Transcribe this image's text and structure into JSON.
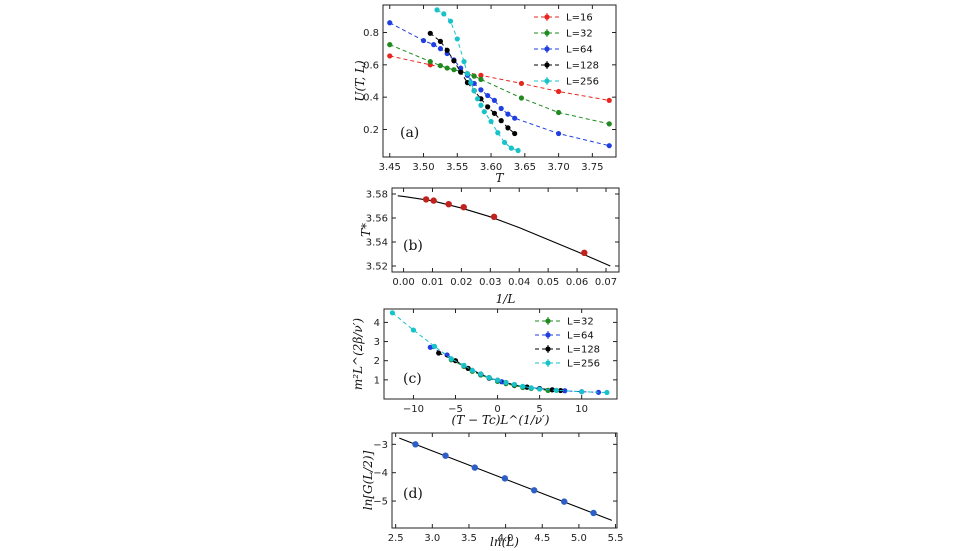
{
  "chart_data": [
    {
      "type": "line",
      "panel_label": "(a)",
      "xlabel": "T",
      "ylabel": "U(T, L)",
      "xlim": [
        3.44,
        3.785
      ],
      "ylim": [
        0.03,
        0.97
      ],
      "xticks": [
        3.45,
        3.5,
        3.55,
        3.6,
        3.65,
        3.7,
        3.75
      ],
      "xtick_labels": [
        "3.45",
        "3.50",
        "3.55",
        "3.60",
        "3.65",
        "3.70",
        "3.75"
      ],
      "yticks": [
        0.2,
        0.4,
        0.6,
        0.8
      ],
      "ytick_labels": [
        "0.2",
        "0.4",
        "0.6",
        "0.8"
      ],
      "legend_position": "top-right",
      "series": [
        {
          "name": "L=16",
          "color": "#e8251f",
          "x": [
            3.45,
            3.51,
            3.555,
            3.585,
            3.645,
            3.7,
            3.775
          ],
          "y": [
            0.655,
            0.6,
            0.56,
            0.535,
            0.485,
            0.435,
            0.38
          ]
        },
        {
          "name": "L=32",
          "color": "#1f8a1f",
          "x": [
            3.45,
            3.51,
            3.525,
            3.535,
            3.545,
            3.555,
            3.565,
            3.575,
            3.585,
            3.645,
            3.7,
            3.775
          ],
          "y": [
            0.725,
            0.62,
            0.595,
            0.58,
            0.57,
            0.56,
            0.545,
            0.53,
            0.51,
            0.395,
            0.305,
            0.235
          ]
        },
        {
          "name": "L=64",
          "color": "#1f3fe0",
          "x": [
            3.45,
            3.5,
            3.515,
            3.525,
            3.535,
            3.545,
            3.555,
            3.565,
            3.575,
            3.585,
            3.595,
            3.605,
            3.615,
            3.625,
            3.635,
            3.7,
            3.775
          ],
          "y": [
            0.86,
            0.75,
            0.725,
            0.7,
            0.67,
            0.63,
            0.58,
            0.535,
            0.485,
            0.445,
            0.41,
            0.38,
            0.33,
            0.295,
            0.27,
            0.175,
            0.1
          ]
        },
        {
          "name": "L=128",
          "color": "#000000",
          "x": [
            3.51,
            3.525,
            3.535,
            3.545,
            3.555,
            3.565,
            3.575,
            3.585,
            3.595,
            3.605,
            3.615,
            3.625,
            3.635
          ],
          "y": [
            0.795,
            0.745,
            0.69,
            0.625,
            0.555,
            0.49,
            0.44,
            0.39,
            0.34,
            0.3,
            0.255,
            0.21,
            0.175
          ]
        },
        {
          "name": "L=256",
          "color": "#17c3c9",
          "x": [
            3.52,
            3.53,
            3.54,
            3.55,
            3.56,
            3.565,
            3.57,
            3.575,
            3.58,
            3.585,
            3.59,
            3.6,
            3.61,
            3.62,
            3.63,
            3.64
          ],
          "y": [
            0.94,
            0.915,
            0.87,
            0.76,
            0.62,
            0.545,
            0.49,
            0.44,
            0.39,
            0.35,
            0.31,
            0.25,
            0.18,
            0.12,
            0.085,
            0.07
          ]
        }
      ]
    },
    {
      "type": "scatter",
      "panel_label": "(b)",
      "xlabel": "1/L",
      "ylabel": "T*",
      "xlim": [
        -0.004,
        0.0745
      ],
      "ylim": [
        3.515,
        3.585
      ],
      "xticks": [
        0.0,
        0.01,
        0.02,
        0.03,
        0.04,
        0.05,
        0.06,
        0.07
      ],
      "xtick_labels": [
        "0.00",
        "0.01",
        "0.02",
        "0.03",
        "0.04",
        "0.05",
        "0.06",
        "0.07"
      ],
      "yticks": [
        3.52,
        3.54,
        3.56,
        3.58
      ],
      "ytick_labels": [
        "3.52",
        "3.54",
        "3.56",
        "3.58"
      ],
      "points": {
        "color": "#c1221d",
        "x": [
          0.0078,
          0.0104,
          0.0156,
          0.0208,
          0.0313,
          0.0625
        ],
        "y": [
          3.5755,
          3.5745,
          3.5715,
          3.569,
          3.561,
          3.531
        ]
      },
      "fit": {
        "color": "#000000",
        "x": [
          -0.002,
          0.0,
          0.01,
          0.02,
          0.03,
          0.04,
          0.05,
          0.06,
          0.0715
        ],
        "y": [
          3.5785,
          3.578,
          3.5743,
          3.5683,
          3.561,
          3.552,
          3.542,
          3.532,
          3.52
        ]
      }
    },
    {
      "type": "line",
      "panel_label": "(c)",
      "xlabel": "(T − Tc)L^(1/ν′)",
      "ylabel": "m²L^(2β/ν′)",
      "xlim": [
        -13.5,
        14.2
      ],
      "ylim": [
        0.0,
        4.7
      ],
      "xticks": [
        -10,
        -5,
        0,
        5,
        10
      ],
      "xtick_labels": [
        "−10",
        "−5",
        "0",
        "5",
        "10"
      ],
      "yticks": [
        1,
        2,
        3,
        4
      ],
      "ytick_labels": [
        "1",
        "2",
        "3",
        "4"
      ],
      "legend_position": "top-right",
      "series": [
        {
          "name": "L=32",
          "color": "#1f8a1f",
          "x": [
            -5.5,
            -4.0,
            -3.0,
            -2.0,
            -1.0,
            0.0,
            1.0,
            2.0,
            3.0,
            4.0,
            6.0
          ],
          "y": [
            2.05,
            1.7,
            1.45,
            1.25,
            1.08,
            0.92,
            0.8,
            0.7,
            0.6,
            0.55,
            0.45
          ]
        },
        {
          "name": "L=64",
          "color": "#1f3fe0",
          "x": [
            -8.0,
            -6.0,
            -4.0,
            -2.0,
            -1.0,
            0.5,
            2.0,
            3.5,
            5.0,
            6.5,
            8.0,
            10.0,
            12.0
          ],
          "y": [
            2.7,
            2.3,
            1.75,
            1.3,
            1.1,
            0.9,
            0.75,
            0.62,
            0.55,
            0.48,
            0.43,
            0.38,
            0.35
          ]
        },
        {
          "name": "L=128",
          "color": "#000000",
          "x": [
            -7.0,
            -5.0,
            -3.5,
            -2.0,
            -1.0,
            0.0,
            1.0,
            2.0,
            3.5,
            5.0,
            6.5,
            7.5
          ],
          "y": [
            2.4,
            2.0,
            1.6,
            1.3,
            1.12,
            0.98,
            0.86,
            0.74,
            0.62,
            0.54,
            0.48,
            0.44
          ]
        },
        {
          "name": "L=256",
          "color": "#17c3c9",
          "x": [
            -12.5,
            -10.0,
            -7.5,
            -5.5,
            -4.0,
            -3.0,
            -2.0,
            -1.0,
            0.0,
            1.0,
            2.0,
            3.0,
            4.0,
            5.0,
            7.0,
            10.0,
            13.0
          ],
          "y": [
            4.5,
            3.6,
            2.75,
            2.1,
            1.75,
            1.5,
            1.3,
            1.12,
            0.98,
            0.86,
            0.76,
            0.66,
            0.58,
            0.52,
            0.45,
            0.38,
            0.34
          ]
        }
      ]
    },
    {
      "type": "scatter",
      "panel_label": "(d)",
      "xlabel": "ln(L)",
      "ylabel": "ln[G(L/2)]",
      "xlim": [
        2.45,
        5.52
      ],
      "ylim": [
        -5.95,
        -2.6
      ],
      "xticks": [
        2.5,
        3.0,
        3.5,
        4.0,
        4.5,
        5.0,
        5.5
      ],
      "xtick_labels": [
        "2.5",
        "3.0",
        "3.5",
        "4.0",
        "4.5",
        "5.0",
        "5.5"
      ],
      "yticks": [
        -3,
        -4,
        -5
      ],
      "ytick_labels": [
        "−3",
        "−4",
        "−5"
      ],
      "points": {
        "color": "#2e5fc9",
        "x": [
          2.77,
          3.18,
          3.58,
          3.99,
          4.39,
          4.8,
          5.2
        ],
        "y": [
          -3.0,
          -3.4,
          -3.82,
          -4.2,
          -4.62,
          -5.02,
          -5.42
        ]
      },
      "fit": {
        "color": "#000000",
        "x": [
          2.55,
          5.45
        ],
        "y": [
          -2.78,
          -5.68
        ]
      }
    }
  ]
}
